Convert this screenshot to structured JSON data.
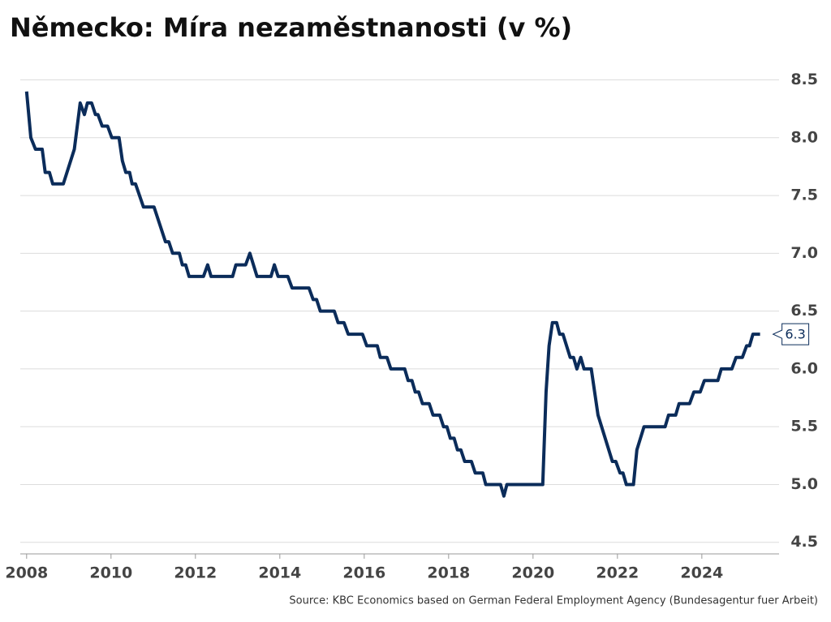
{
  "chart_data": {
    "type": "line",
    "title": "Německo: Míra nezaměstnanosti (v %)",
    "source": "Source: KBC Economics based on German Federal Employment Agency (Bundesagentur fuer Arbeit)",
    "xlim": [
      2007.85,
      2025.83
    ],
    "xticks": [
      2008,
      2010,
      2012,
      2014,
      2016,
      2018,
      2020,
      2022,
      2024
    ],
    "ylim": [
      4.4,
      8.7
    ],
    "yticks": [
      4.5,
      {
        "value": 5,
        "label": "5.0"
      },
      5.5,
      {
        "value": 6,
        "label": "6.0"
      },
      6.5,
      {
        "value": 7,
        "label": "7.0"
      },
      7.5,
      {
        "value": 8,
        "label": "8.0"
      },
      8.5
    ],
    "grid": true,
    "series": [
      {
        "name": "Míra nezaměstnanosti",
        "color": "#0b2c5a",
        "x": [
          2008.0,
          2008.1,
          2008.21,
          2008.37,
          2008.44,
          2008.54,
          2008.62,
          2008.87,
          2009.13,
          2009.27,
          2009.37,
          2009.44,
          2009.54,
          2009.63,
          2009.69,
          2009.79,
          2009.92,
          2010.02,
          2010.19,
          2010.27,
          2010.35,
          2010.44,
          2010.5,
          2010.58,
          2010.77,
          2011.02,
          2011.29,
          2011.37,
          2011.46,
          2011.62,
          2011.69,
          2011.77,
          2011.85,
          2012.19,
          2012.29,
          2012.37,
          2012.88,
          2012.96,
          2013.19,
          2013.29,
          2013.46,
          2013.79,
          2013.87,
          2013.96,
          2014.19,
          2014.29,
          2014.69,
          2014.79,
          2014.87,
          2014.96,
          2015.29,
          2015.38,
          2015.52,
          2015.62,
          2015.96,
          2016.06,
          2016.31,
          2016.38,
          2016.54,
          2016.63,
          2016.96,
          2017.04,
          2017.13,
          2017.21,
          2017.29,
          2017.38,
          2017.54,
          2017.63,
          2017.79,
          2017.88,
          2017.96,
          2018.04,
          2018.13,
          2018.21,
          2018.29,
          2018.38,
          2018.54,
          2018.63,
          2018.81,
          2018.88,
          2019.23,
          2019.31,
          2019.38,
          2020.23,
          2020.31,
          2020.38,
          2020.46,
          2020.56,
          2020.63,
          2020.71,
          2020.88,
          2020.96,
          2021.04,
          2021.13,
          2021.21,
          2021.38,
          2021.54,
          2021.88,
          2021.96,
          2022.06,
          2022.13,
          2022.21,
          2022.38,
          2022.46,
          2022.63,
          2023.13,
          2023.21,
          2023.38,
          2023.46,
          2023.71,
          2023.81,
          2023.96,
          2024.06,
          2024.38,
          2024.46,
          2024.71,
          2024.81,
          2024.96,
          2025.06,
          2025.13,
          2025.21,
          2025.38
        ],
        "values": [
          8.4,
          8.0,
          7.9,
          7.9,
          7.7,
          7.7,
          7.6,
          7.6,
          7.9,
          8.3,
          8.2,
          8.3,
          8.3,
          8.2,
          8.2,
          8.1,
          8.1,
          8.0,
          8.0,
          7.8,
          7.7,
          7.7,
          7.6,
          7.6,
          7.4,
          7.4,
          7.1,
          7.1,
          7.0,
          7.0,
          6.9,
          6.9,
          6.8,
          6.8,
          6.9,
          6.8,
          6.8,
          6.9,
          6.9,
          7.0,
          6.8,
          6.8,
          6.9,
          6.8,
          6.8,
          6.7,
          6.7,
          6.6,
          6.6,
          6.5,
          6.5,
          6.4,
          6.4,
          6.3,
          6.3,
          6.2,
          6.2,
          6.1,
          6.1,
          6.0,
          6.0,
          5.9,
          5.9,
          5.8,
          5.8,
          5.7,
          5.7,
          5.6,
          5.6,
          5.5,
          5.5,
          5.4,
          5.4,
          5.3,
          5.3,
          5.2,
          5.2,
          5.1,
          5.1,
          5.0,
          5.0,
          4.9,
          5.0,
          5.0,
          5.8,
          6.2,
          6.4,
          6.4,
          6.3,
          6.3,
          6.1,
          6.1,
          6.0,
          6.1,
          6.0,
          6.0,
          5.6,
          5.2,
          5.2,
          5.1,
          5.1,
          5.0,
          5.0,
          5.3,
          5.5,
          5.5,
          5.6,
          5.6,
          5.7,
          5.7,
          5.8,
          5.8,
          5.9,
          5.9,
          6.0,
          6.0,
          6.1,
          6.1,
          6.2,
          6.2,
          6.3,
          6.3
        ]
      }
    ]
  }
}
